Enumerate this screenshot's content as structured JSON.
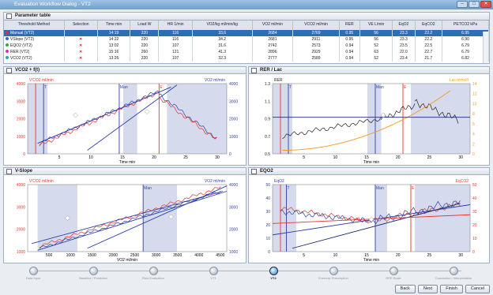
{
  "window": {
    "title": "Evaluation Workflow Dialog - VT2"
  },
  "param_table": {
    "title": "Parameter table",
    "headers": [
      "Threshold Method",
      "Selection",
      "Time min",
      "Load W",
      "HR 1/min",
      "VO2/kg ml/min/kg",
      "VO2 ml/min",
      "VCO2 ml/min",
      "RER",
      "VE L/min",
      "EqO2",
      "EqCO2",
      "PETCO2 kPa"
    ],
    "rows": [
      {
        "method": "Manual (VT2)",
        "sel": "check",
        "time": "14:19",
        "load": "220",
        "hr": "116",
        "vo2kg": "33.6",
        "vo2": "2684",
        "vco2": "2769",
        "rer": "0.95",
        "ve": "56",
        "eqo2": "23.3",
        "eqco2": "22.2",
        "petco2": "6.95",
        "color": "#d33",
        "selected": true
      },
      {
        "method": "VSlope (VT2)",
        "sel": "cross",
        "time": "14:22",
        "load": "220",
        "hr": "116",
        "vo2kg": "34.2",
        "vo2": "2681",
        "vco2": "2911",
        "rer": "0.95",
        "ve": "56",
        "eqo2": "23.3",
        "eqco2": "22.2",
        "petco2": "6.90",
        "color": "#36c",
        "selected": false
      },
      {
        "method": "EQO2 (VT2)",
        "sel": "cross",
        "time": "13:02",
        "load": "220",
        "hr": "107",
        "vo2kg": "31.6",
        "vo2": "2742",
        "vco2": "2573",
        "rer": "0.94",
        "ve": "52",
        "eqo2": "23.5",
        "eqco2": "22.5",
        "petco2": "6.79",
        "color": "#3a3",
        "selected": false
      },
      {
        "method": "RER (VT2)",
        "sel": "cross",
        "time": "15:16",
        "load": "260",
        "hr": "121",
        "vo2kg": "41.3",
        "vo2": "2896",
        "vco2": "2929",
        "rer": "0.94",
        "ve": "63",
        "eqo2": "22.0",
        "eqco2": "22.7",
        "petco2": "6.79",
        "color": "#c3c",
        "selected": false
      },
      {
        "method": "VCO2 (VT2)",
        "sel": "cross",
        "time": "13:26",
        "load": "220",
        "hr": "107",
        "vo2kg": "32.3",
        "vo2": "2777",
        "vco2": "2589",
        "rer": "0.94",
        "ve": "52",
        "eqo2": "23.4",
        "eqco2": "21.7",
        "petco2": "6.82",
        "color": "#2aa",
        "selected": false
      }
    ]
  },
  "panels": {
    "p1": {
      "title": "VCO2 + f(t)",
      "yl1": "V'CO2 ml/min",
      "yl2": "VO2 ml/min",
      "xl": "Time min",
      "mk1": "Man",
      "mk2": "T",
      "mk3": "E",
      "ticksL": [
        "4000",
        "3000",
        "2000",
        "1000",
        "0"
      ],
      "ticksR": [
        "4000",
        "3000",
        "2000",
        "1000",
        "0"
      ],
      "ticksX": [
        "5",
        "10",
        "15",
        "20",
        "25",
        "30"
      ]
    },
    "p2": {
      "title": "RER / Lac",
      "yl1": "RER",
      "yl2": "Lac mmol/l",
      "xl": "Time min",
      "mk1": "Man",
      "mk2": "T",
      "mk3": "E",
      "ticksL": [
        "1.3",
        "1.1",
        "0.9",
        "0.7",
        "0.5"
      ],
      "ticksR": [
        "14",
        "12",
        "10",
        "8",
        "6",
        "4",
        "2",
        "0"
      ],
      "ticksX": [
        "5",
        "10",
        "15",
        "20",
        "25",
        "30"
      ]
    },
    "p3": {
      "title": "V-Slope",
      "yl1": "V'CO2 ml/min",
      "yl2": "VO2 ml/min",
      "xl": "VO2 ml/min",
      "mk1": "Man",
      "ticksL": [
        "4000",
        "3000",
        "2000",
        "1000"
      ],
      "ticksR": [
        "4000",
        "3000",
        "2000",
        "1000"
      ],
      "ticksX": [
        "500",
        "1000",
        "1500",
        "2000",
        "2500",
        "3000",
        "3500",
        "4000",
        "4500"
      ]
    },
    "p4": {
      "title": "EQO2",
      "yl1": "EqO2",
      "yl2": "EqCO2",
      "xl": "Time min",
      "mk1": "Man",
      "mk2": "T",
      "mk3": "E",
      "ticksL": [
        "50",
        "40",
        "30",
        "20",
        "10",
        "0"
      ],
      "ticksR": [
        "50",
        "40",
        "30",
        "20",
        "10",
        "0"
      ],
      "ticksX": [
        "5",
        "10",
        "15",
        "20",
        "25",
        "30"
      ]
    }
  },
  "steps": [
    "Data Input",
    "Baseline / Predicted",
    "Raw Evaluation",
    "VT1",
    "VT2",
    "Exercise Prescription",
    "RPE Scale",
    "Conclusion / Interpretation"
  ],
  "active_step": 4,
  "buttons": {
    "back": "Back",
    "next": "Next",
    "finish": "Finish",
    "cancel": "Cancel"
  },
  "colors": {
    "red": "#e8342a",
    "blue": "#2f3fa8",
    "orange": "#f39a1e",
    "band": "#d5dbec",
    "navy": "#1d2a6b"
  }
}
